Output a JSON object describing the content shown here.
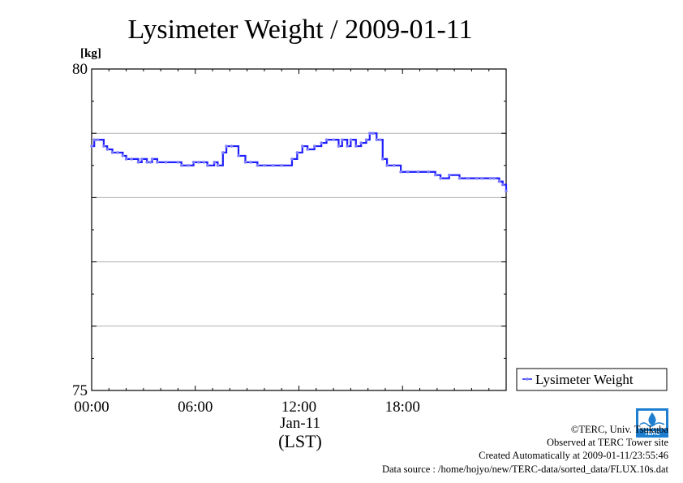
{
  "chart_data": {
    "type": "line",
    "title": "Lysimeter Weight / 2009-01-11",
    "ylabel": "[kg]",
    "xlabel": "(LST)",
    "date_label": "Jan-11",
    "xlim": [
      0,
      24
    ],
    "ylim": [
      75,
      80
    ],
    "x_ticks": [
      0,
      6,
      12,
      18
    ],
    "x_tick_labels": [
      "00:00",
      "06:00",
      "12:00",
      "18:00"
    ],
    "y_ticks": [
      75,
      80
    ],
    "y_tick_labels": [
      "75",
      "80"
    ],
    "grid": "horizontal",
    "grid_values": [
      76,
      77,
      78,
      79
    ],
    "legend_position": "right-bottom-outside",
    "series": [
      {
        "name": "Lysimeter Weight",
        "color": "#1f1fff",
        "marker_color": "#8080ff",
        "x": [
          0.0,
          0.15,
          0.35,
          0.7,
          0.9,
          1.2,
          1.5,
          1.8,
          2.0,
          2.3,
          2.7,
          2.9,
          3.2,
          3.4,
          3.5,
          3.8,
          4.3,
          5.0,
          5.2,
          5.6,
          5.9,
          6.2,
          6.5,
          6.7,
          7.1,
          7.3,
          7.6,
          7.8,
          8.1,
          8.5,
          8.9,
          9.2,
          9.6,
          10.0,
          10.5,
          11.0,
          11.6,
          11.9,
          12.2,
          12.5,
          12.9,
          13.3,
          13.6,
          14.0,
          14.3,
          14.5,
          14.8,
          15.0,
          15.3,
          15.6,
          15.9,
          16.1,
          16.3,
          16.5,
          16.7,
          16.85,
          17.1,
          17.5,
          17.9,
          18.3,
          18.9,
          19.5,
          19.9,
          20.2,
          20.7,
          21.3,
          21.8,
          22.3,
          22.6,
          23.1,
          23.3,
          23.6,
          23.8,
          24.0
        ],
        "values": [
          78.8,
          78.9,
          78.9,
          78.8,
          78.75,
          78.7,
          78.7,
          78.65,
          78.6,
          78.6,
          78.55,
          78.6,
          78.55,
          78.55,
          78.6,
          78.55,
          78.55,
          78.55,
          78.5,
          78.5,
          78.55,
          78.55,
          78.55,
          78.5,
          78.55,
          78.5,
          78.7,
          78.8,
          78.8,
          78.65,
          78.55,
          78.55,
          78.5,
          78.5,
          78.5,
          78.5,
          78.6,
          78.7,
          78.8,
          78.75,
          78.8,
          78.85,
          78.9,
          78.9,
          78.8,
          78.9,
          78.8,
          78.9,
          78.8,
          78.85,
          78.9,
          79.0,
          79.0,
          78.9,
          78.9,
          78.6,
          78.5,
          78.5,
          78.4,
          78.4,
          78.4,
          78.4,
          78.35,
          78.3,
          78.35,
          78.3,
          78.3,
          78.3,
          78.3,
          78.3,
          78.3,
          78.25,
          78.2,
          78.1
        ]
      }
    ]
  },
  "credits": {
    "copyright": "©TERC, Univ. Tsukuba",
    "observed": "Observed at TERC Tower site",
    "created": "Created Automatically at 2009-01-11/23:55:46",
    "source": "Data source : /home/hojyo/new/TERC-data/sorted_data/FLUX.10s.dat",
    "logo_text": "TERC"
  }
}
